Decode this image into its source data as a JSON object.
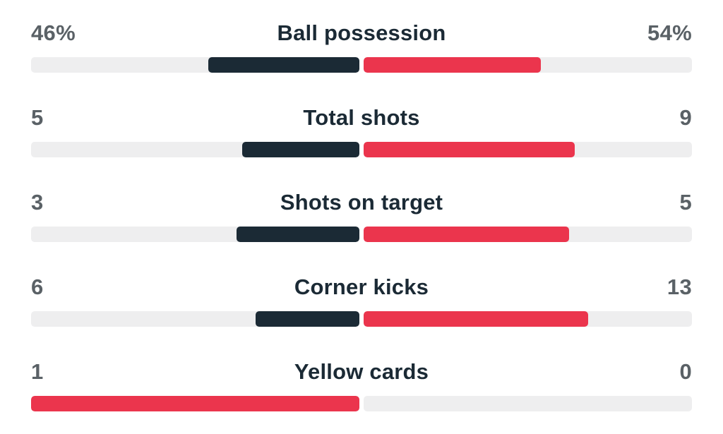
{
  "colors": {
    "home_leading": "#1b2a35",
    "away": "#eb354d",
    "home_winner": "#eb354d",
    "track": "#eeeeef"
  },
  "stats": [
    {
      "label": "Ball possession",
      "home": "46%",
      "away": "54%",
      "home_share": 0.46,
      "away_share": 0.54,
      "home_color": "#1b2a35",
      "away_color": "#eb354d"
    },
    {
      "label": "Total shots",
      "home": "5",
      "away": "9",
      "home_share": 0.357,
      "away_share": 0.643,
      "home_color": "#1b2a35",
      "away_color": "#eb354d"
    },
    {
      "label": "Shots on target",
      "home": "3",
      "away": "5",
      "home_share": 0.375,
      "away_share": 0.625,
      "home_color": "#1b2a35",
      "away_color": "#eb354d"
    },
    {
      "label": "Corner kicks",
      "home": "6",
      "away": "13",
      "home_share": 0.316,
      "away_share": 0.684,
      "home_color": "#1b2a35",
      "away_color": "#eb354d"
    },
    {
      "label": "Yellow cards",
      "home": "1",
      "away": "0",
      "home_share": 1.0,
      "away_share": 0.0,
      "home_color": "#eb354d",
      "away_color": "#eb354d"
    }
  ]
}
